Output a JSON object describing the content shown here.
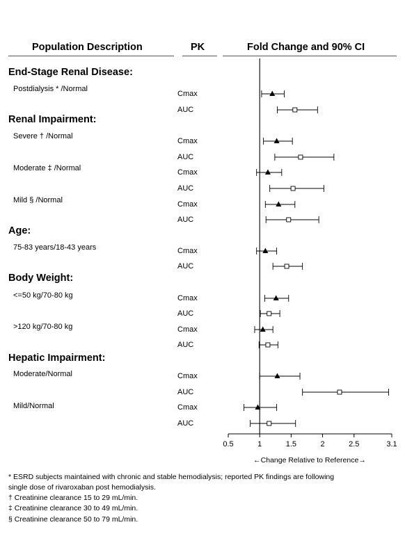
{
  "headers": {
    "population": "Population Description",
    "pk": "PK",
    "fold": "Fold Change and 90% CI"
  },
  "groups": [
    {
      "title": "End-Stage Renal Disease:",
      "subgroups": [
        {
          "label": "Postdialysis * /Normal"
        }
      ]
    },
    {
      "title": "Renal Impairment:",
      "subgroups": [
        {
          "label": "Severe † /Normal"
        },
        {
          "label": "Moderate ‡ /Normal"
        },
        {
          "label": "Mild § /Normal"
        }
      ]
    },
    {
      "title": "Age:",
      "subgroups": [
        {
          "label": "75-83 years/18-43 years"
        }
      ]
    },
    {
      "title": "Body Weight:",
      "subgroups": [
        {
          "label": "<=50 kg/70-80 kg"
        },
        {
          "label": ">120 kg/70-80 kg"
        }
      ]
    },
    {
      "title": "Hepatic Impairment:",
      "subgroups": [
        {
          "label": "Moderate/Normal"
        },
        {
          "label": "Mild/Normal"
        }
      ]
    }
  ],
  "chart_data": {
    "type": "forest",
    "title": "Fold Change and 90% CI",
    "xlabel": "←Change Relative to Reference→",
    "xlim": [
      0.5,
      3.1
    ],
    "xticks": [
      0.5,
      1,
      1.5,
      2,
      2.5,
      3.1
    ],
    "xtick_labels": [
      "0.5",
      "1",
      "1.5",
      "2",
      "2.5",
      "3.1"
    ],
    "reference_line": 1,
    "markers": {
      "Cmax": "filled-triangle",
      "AUC": "open-square"
    },
    "rows": [
      {
        "subgroup": "Postdialysis * /Normal",
        "pk": "Cmax",
        "estimate": 1.2,
        "lower": 1.03,
        "upper": 1.39
      },
      {
        "subgroup": "Postdialysis * /Normal",
        "pk": "AUC",
        "estimate": 1.56,
        "lower": 1.28,
        "upper": 1.92
      },
      {
        "subgroup": "Severe † /Normal",
        "pk": "Cmax",
        "estimate": 1.27,
        "lower": 1.06,
        "upper": 1.52
      },
      {
        "subgroup": "Severe † /Normal",
        "pk": "AUC",
        "estimate": 1.65,
        "lower": 1.24,
        "upper": 2.18
      },
      {
        "subgroup": "Moderate ‡ /Normal",
        "pk": "Cmax",
        "estimate": 1.13,
        "lower": 0.95,
        "upper": 1.35
      },
      {
        "subgroup": "Moderate ‡ /Normal",
        "pk": "AUC",
        "estimate": 1.53,
        "lower": 1.16,
        "upper": 2.02
      },
      {
        "subgroup": "Mild § /Normal",
        "pk": "Cmax",
        "estimate": 1.3,
        "lower": 1.09,
        "upper": 1.56
      },
      {
        "subgroup": "Mild § /Normal",
        "pk": "AUC",
        "estimate": 1.46,
        "lower": 1.1,
        "upper": 1.94
      },
      {
        "subgroup": "75-83 years/18-43 years",
        "pk": "Cmax",
        "estimate": 1.09,
        "lower": 0.95,
        "upper": 1.27
      },
      {
        "subgroup": "75-83 years/18-43 years",
        "pk": "AUC",
        "estimate": 1.43,
        "lower": 1.21,
        "upper": 1.68
      },
      {
        "subgroup": "<=50 kg/70-80 kg",
        "pk": "Cmax",
        "estimate": 1.26,
        "lower": 1.08,
        "upper": 1.46
      },
      {
        "subgroup": "<=50 kg/70-80 kg",
        "pk": "AUC",
        "estimate": 1.15,
        "lower": 1.01,
        "upper": 1.32
      },
      {
        "subgroup": ">120 kg/70-80 kg",
        "pk": "Cmax",
        "estimate": 1.05,
        "lower": 0.92,
        "upper": 1.21
      },
      {
        "subgroup": ">120 kg/70-80 kg",
        "pk": "AUC",
        "estimate": 1.13,
        "lower": 0.99,
        "upper": 1.29
      },
      {
        "subgroup": "Moderate/Normal",
        "pk": "Cmax",
        "estimate": 1.28,
        "lower": 1.0,
        "upper": 1.64
      },
      {
        "subgroup": "Moderate/Normal",
        "pk": "AUC",
        "estimate": 2.27,
        "lower": 1.68,
        "upper": 3.05
      },
      {
        "subgroup": "Mild/Normal",
        "pk": "Cmax",
        "estimate": 0.97,
        "lower": 0.75,
        "upper": 1.27
      },
      {
        "subgroup": "Mild/Normal",
        "pk": "AUC",
        "estimate": 1.15,
        "lower": 0.85,
        "upper": 1.57
      }
    ]
  },
  "footnotes": [
    "* ESRD subjects maintained with chronic and stable hemodialysis; reported PK findings are following",
    "single dose of rivaroxaban post hemodialysis.",
    "† Creatinine clearance 15 to 29 mL/min.",
    "‡ Creatinine clearance 30 to 49 mL/min.",
    "§ Creatinine clearance 50 to 79 mL/min."
  ]
}
